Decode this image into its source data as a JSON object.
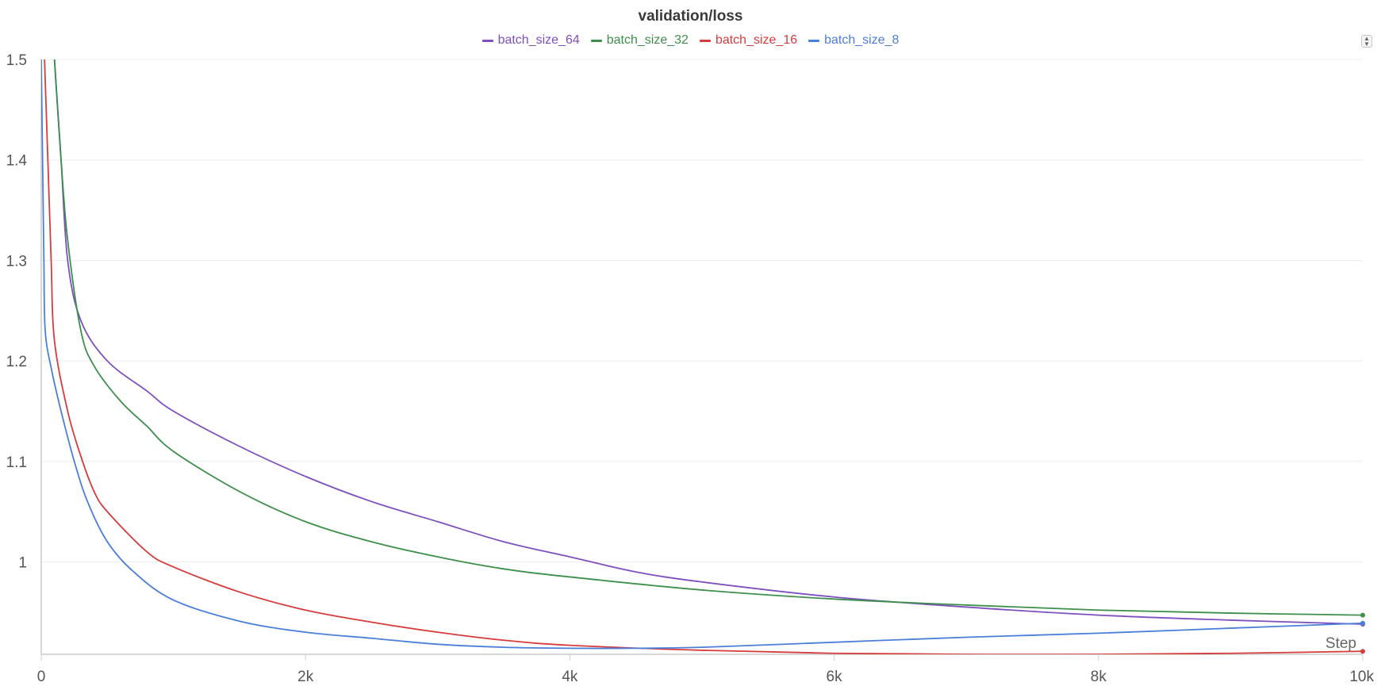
{
  "chart_data": {
    "type": "line",
    "title": "validation/loss",
    "xlabel": "Step",
    "ylabel": "",
    "xlim": [
      0,
      10000
    ],
    "ylim": [
      0.908,
      1.5
    ],
    "x_ticks": [
      0,
      2000,
      4000,
      6000,
      8000,
      10000
    ],
    "x_tick_labels": [
      "0",
      "2k",
      "4k",
      "6k",
      "8k",
      "10k"
    ],
    "y_ticks": [
      1,
      1.1,
      1.2,
      1.3,
      1.4,
      1.5
    ],
    "y_tick_labels": [
      "1",
      "1.1",
      "1.2",
      "1.3",
      "1.4",
      "1.5"
    ],
    "grid": true,
    "legend_position": "top-center",
    "series": [
      {
        "name": "batch_size_64",
        "color": "#7e4fbf",
        "points": [
          [
            100,
            1.5
          ],
          [
            150,
            1.4
          ],
          [
            200,
            1.3
          ],
          [
            300,
            1.24
          ],
          [
            500,
            1.2
          ],
          [
            800,
            1.17
          ],
          [
            1000,
            1.15
          ],
          [
            1500,
            1.115
          ],
          [
            2000,
            1.085
          ],
          [
            2500,
            1.06
          ],
          [
            3000,
            1.04
          ],
          [
            3500,
            1.02
          ],
          [
            4000,
            1.005
          ],
          [
            4500,
            0.99
          ],
          [
            5000,
            0.98
          ],
          [
            6000,
            0.965
          ],
          [
            7000,
            0.955
          ],
          [
            8000,
            0.947
          ],
          [
            9000,
            0.942
          ],
          [
            10000,
            0.938
          ]
        ]
      },
      {
        "name": "batch_size_32",
        "color": "#3d8f4b",
        "points": [
          [
            100,
            1.5
          ],
          [
            150,
            1.4
          ],
          [
            200,
            1.32
          ],
          [
            300,
            1.23
          ],
          [
            400,
            1.195
          ],
          [
            600,
            1.16
          ],
          [
            800,
            1.135
          ],
          [
            1000,
            1.11
          ],
          [
            1500,
            1.07
          ],
          [
            2000,
            1.04
          ],
          [
            2500,
            1.02
          ],
          [
            3000,
            1.005
          ],
          [
            3500,
            0.993
          ],
          [
            4000,
            0.985
          ],
          [
            5000,
            0.972
          ],
          [
            6000,
            0.963
          ],
          [
            7000,
            0.957
          ],
          [
            8000,
            0.952
          ],
          [
            9000,
            0.949
          ],
          [
            10000,
            0.947
          ]
        ]
      },
      {
        "name": "batch_size_16",
        "color": "#d63c3c",
        "points": [
          [
            25,
            1.5
          ],
          [
            50,
            1.4
          ],
          [
            75,
            1.3
          ],
          [
            100,
            1.22
          ],
          [
            200,
            1.15
          ],
          [
            300,
            1.105
          ],
          [
            400,
            1.07
          ],
          [
            500,
            1.05
          ],
          [
            800,
            1.01
          ],
          [
            1000,
            0.995
          ],
          [
            1500,
            0.97
          ],
          [
            2000,
            0.952
          ],
          [
            2500,
            0.94
          ],
          [
            3000,
            0.93
          ],
          [
            3500,
            0.922
          ],
          [
            4000,
            0.917
          ],
          [
            5000,
            0.912
          ],
          [
            6000,
            0.909
          ],
          [
            7000,
            0.908
          ],
          [
            8000,
            0.908
          ],
          [
            9000,
            0.909
          ],
          [
            10000,
            0.911
          ]
        ]
      },
      {
        "name": "batch_size_8",
        "color": "#4a7fd9",
        "points": [
          [
            0,
            1.5
          ],
          [
            10,
            1.4
          ],
          [
            20,
            1.3
          ],
          [
            30,
            1.23
          ],
          [
            80,
            1.19
          ],
          [
            150,
            1.15
          ],
          [
            250,
            1.1
          ],
          [
            350,
            1.06
          ],
          [
            500,
            1.02
          ],
          [
            700,
            0.99
          ],
          [
            1000,
            0.962
          ],
          [
            1500,
            0.941
          ],
          [
            2000,
            0.93
          ],
          [
            2500,
            0.924
          ],
          [
            3000,
            0.918
          ],
          [
            3500,
            0.915
          ],
          [
            4000,
            0.914
          ],
          [
            4500,
            0.914
          ],
          [
            5000,
            0.915
          ],
          [
            6000,
            0.92
          ],
          [
            7000,
            0.925
          ],
          [
            8000,
            0.929
          ],
          [
            9000,
            0.934
          ],
          [
            10000,
            0.939
          ]
        ]
      }
    ]
  },
  "controls": {
    "scroll_icon": "up-down-arrows-icon"
  }
}
